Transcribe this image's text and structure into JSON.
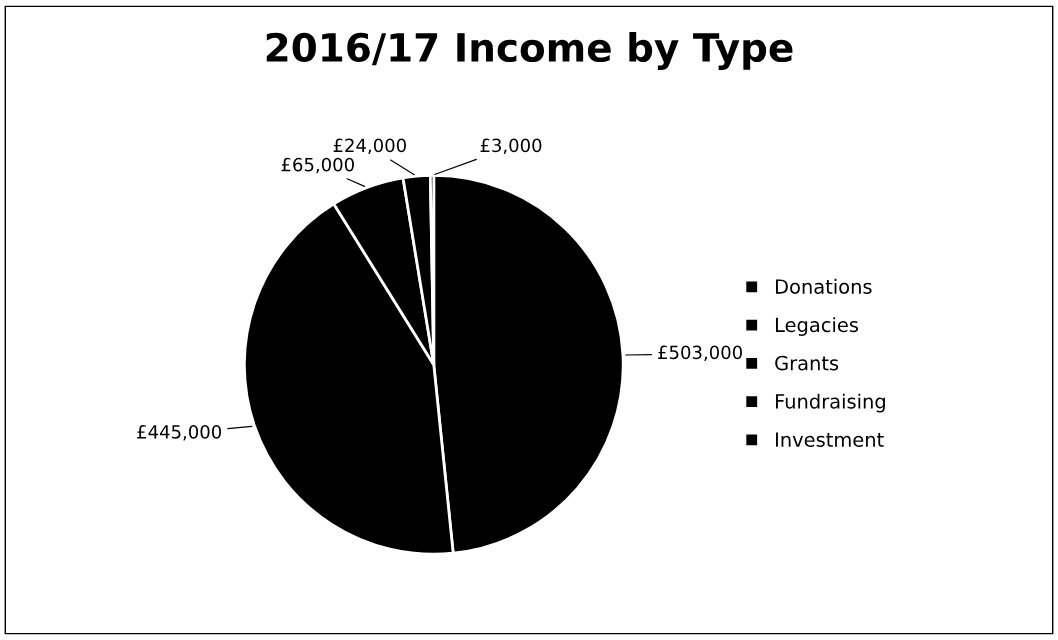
{
  "chart_data": {
    "type": "pie",
    "title": "2016/17 Income by Type",
    "categories": [
      "Donations",
      "Legacies",
      "Grants",
      "Fundraising",
      "Investment"
    ],
    "values": [
      503000,
      445000,
      65000,
      24000,
      3000
    ],
    "value_labels": [
      "£503,000",
      "£445,000",
      "£65,000",
      "£24,000",
      "£3,000"
    ],
    "colors": [
      "#000000",
      "#000000",
      "#000000",
      "#000000",
      "#000000"
    ],
    "legend": "right"
  }
}
